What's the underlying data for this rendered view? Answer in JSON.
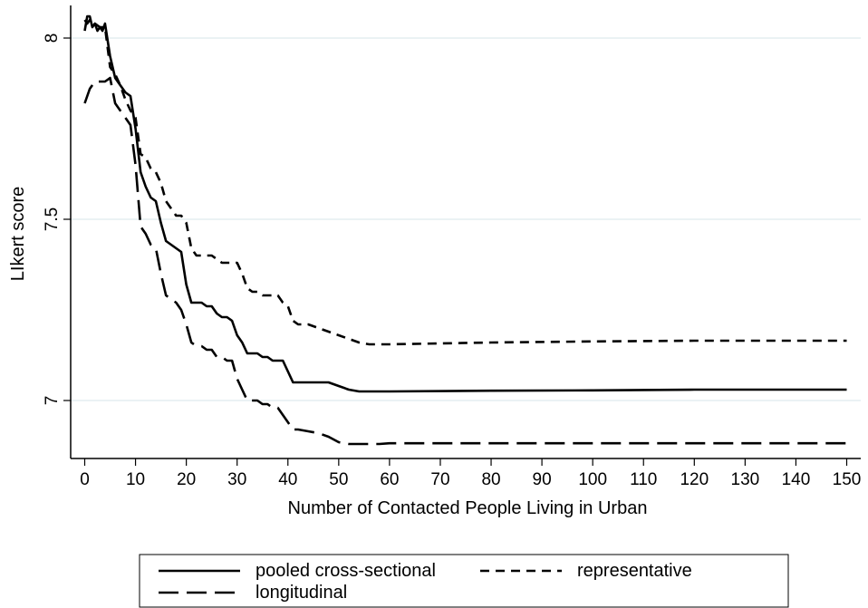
{
  "chart_data": {
    "type": "line",
    "title": "",
    "xlabel": "Number of Contacted People Living in Urban",
    "ylabel": "LIkert score",
    "xlim": [
      0,
      150
    ],
    "ylim": [
      6.84,
      8.1
    ],
    "xticks": [
      0,
      10,
      20,
      30,
      40,
      50,
      60,
      70,
      80,
      90,
      100,
      110,
      120,
      130,
      140,
      150
    ],
    "xtick_labels": [
      "0",
      "10",
      "20",
      "30",
      "40",
      "50",
      "60",
      "70",
      "80",
      "90",
      "100",
      "110",
      "120",
      "130",
      "140",
      "150"
    ],
    "yticks": [
      7,
      7.5,
      8
    ],
    "ytick_labels": [
      "7",
      "7.5",
      "8"
    ],
    "grid": "horizontal",
    "legend_position": "bottom",
    "series": [
      {
        "name": "pooled cross-sectional",
        "style": "solid",
        "x": [
          0,
          0.5,
          1,
          1.5,
          2,
          2.5,
          3,
          3.5,
          4,
          5,
          6,
          7,
          8,
          9,
          10,
          11,
          12,
          13,
          14,
          15,
          16,
          17,
          18,
          19,
          20,
          21,
          22,
          23,
          24,
          25,
          26,
          27,
          28,
          29,
          30,
          31,
          32,
          33,
          34,
          35,
          36,
          37,
          38,
          39,
          40,
          41,
          42,
          44,
          46,
          48,
          50,
          52,
          54,
          56,
          58,
          60,
          80,
          100,
          120,
          140,
          150
        ],
        "y": [
          8.02,
          8.06,
          8.06,
          8.03,
          8.04,
          8.02,
          8.03,
          8.02,
          8.04,
          7.95,
          7.89,
          7.87,
          7.85,
          7.84,
          7.75,
          7.63,
          7.59,
          7.56,
          7.55,
          7.49,
          7.44,
          7.43,
          7.42,
          7.41,
          7.32,
          7.27,
          7.27,
          7.27,
          7.26,
          7.26,
          7.24,
          7.23,
          7.23,
          7.22,
          7.18,
          7.16,
          7.13,
          7.13,
          7.13,
          7.12,
          7.12,
          7.11,
          7.11,
          7.11,
          7.08,
          7.05,
          7.05,
          7.05,
          7.05,
          7.05,
          7.04,
          7.03,
          7.025,
          7.025,
          7.025,
          7.025,
          7.027,
          7.028,
          7.03,
          7.03,
          7.03
        ]
      },
      {
        "name": "representative",
        "style": "short-dash",
        "x": [
          0,
          0.5,
          1,
          2,
          3,
          4,
          5,
          6,
          7,
          8,
          9,
          10,
          11,
          12,
          13,
          14,
          15,
          16,
          17,
          18,
          19,
          20,
          21,
          22,
          23,
          24,
          25,
          26,
          27,
          28,
          29,
          30,
          31,
          32,
          33,
          34,
          35,
          36,
          37,
          38,
          39,
          40,
          41,
          42,
          44,
          46,
          48,
          50,
          52,
          54,
          56,
          58,
          60,
          80,
          100,
          120,
          140,
          150
        ],
        "y": [
          8.05,
          8.04,
          8.05,
          8.04,
          8.03,
          8.03,
          7.92,
          7.9,
          7.87,
          7.83,
          7.8,
          7.78,
          7.68,
          7.67,
          7.64,
          7.63,
          7.6,
          7.55,
          7.53,
          7.51,
          7.51,
          7.49,
          7.42,
          7.4,
          7.4,
          7.4,
          7.4,
          7.39,
          7.38,
          7.38,
          7.38,
          7.38,
          7.35,
          7.31,
          7.3,
          7.3,
          7.29,
          7.29,
          7.29,
          7.29,
          7.27,
          7.26,
          7.22,
          7.21,
          7.21,
          7.2,
          7.19,
          7.18,
          7.17,
          7.16,
          7.155,
          7.155,
          7.155,
          7.16,
          7.163,
          7.165,
          7.165,
          7.165
        ]
      },
      {
        "name": "longitudinal",
        "style": "long-dash",
        "x": [
          0,
          0.5,
          1,
          1.5,
          2,
          3,
          4,
          5,
          6,
          7,
          8,
          9,
          10,
          11,
          12,
          13,
          14,
          15,
          16,
          17,
          18,
          19,
          20,
          21,
          22,
          23,
          24,
          25,
          26,
          27,
          28,
          29,
          30,
          31,
          32,
          33,
          34,
          35,
          36,
          37,
          38,
          39,
          40,
          41,
          42,
          44,
          46,
          48,
          50,
          52,
          54,
          56,
          58,
          60,
          80,
          100,
          120,
          140,
          150
        ],
        "y": [
          7.82,
          7.84,
          7.86,
          7.87,
          7.88,
          7.88,
          7.88,
          7.89,
          7.82,
          7.8,
          7.78,
          7.76,
          7.65,
          7.48,
          7.46,
          7.43,
          7.42,
          7.35,
          7.29,
          7.28,
          7.27,
          7.25,
          7.21,
          7.16,
          7.15,
          7.15,
          7.14,
          7.14,
          7.12,
          7.12,
          7.11,
          7.11,
          7.06,
          7.03,
          7.0,
          7.0,
          7.0,
          6.99,
          6.99,
          6.98,
          6.98,
          6.96,
          6.94,
          6.92,
          6.92,
          6.915,
          6.91,
          6.9,
          6.885,
          6.88,
          6.88,
          6.88,
          6.88,
          6.882,
          6.882,
          6.882,
          6.882,
          6.882,
          6.882
        ]
      }
    ]
  }
}
